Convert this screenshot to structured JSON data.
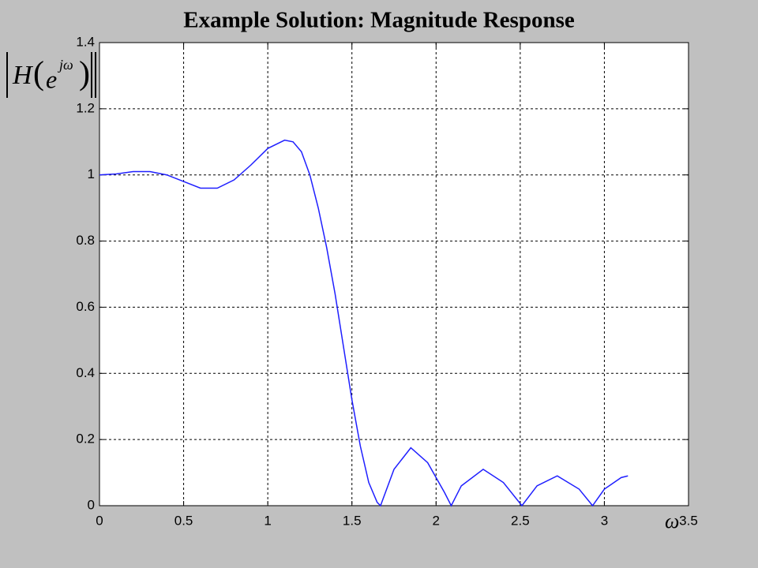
{
  "chart_data": {
    "type": "line",
    "title": "Example Solution: Magnitude Response",
    "xlabel": "ω",
    "ylabel": {
      "function": "H",
      "base": "e",
      "exponent": "jω"
    },
    "xlim": [
      0,
      3.5
    ],
    "xticks": [
      0,
      0.5,
      1,
      1.5,
      2,
      2.5,
      3,
      3.5
    ],
    "ylim": [
      0,
      1.4
    ],
    "yticks": [
      0,
      0.2,
      0.4,
      0.6,
      0.8,
      1,
      1.2,
      1.4
    ],
    "grid": true,
    "series": [
      {
        "color": "#1f1fff",
        "x": [
          0,
          0.1,
          0.2,
          0.3,
          0.4,
          0.5,
          0.6,
          0.7,
          0.8,
          0.9,
          1.0,
          1.1,
          1.15,
          1.2,
          1.25,
          1.3,
          1.35,
          1.4,
          1.45,
          1.5,
          1.55,
          1.6,
          1.65,
          1.67,
          1.75,
          1.85,
          1.95,
          2.05,
          2.09,
          2.15,
          2.28,
          2.4,
          2.51,
          2.6,
          2.72,
          2.85,
          2.93,
          3.0,
          3.1,
          3.14
        ],
        "values": [
          1.0,
          1.003,
          1.01,
          1.01,
          1.0,
          0.98,
          0.96,
          0.96,
          0.985,
          1.03,
          1.08,
          1.105,
          1.1,
          1.07,
          1.0,
          0.9,
          0.78,
          0.64,
          0.48,
          0.32,
          0.18,
          0.07,
          0.01,
          0,
          0.11,
          0.175,
          0.13,
          0.04,
          0,
          0.06,
          0.11,
          0.07,
          0,
          0.06,
          0.09,
          0.05,
          0,
          0.05,
          0.085,
          0.09
        ]
      }
    ]
  }
}
